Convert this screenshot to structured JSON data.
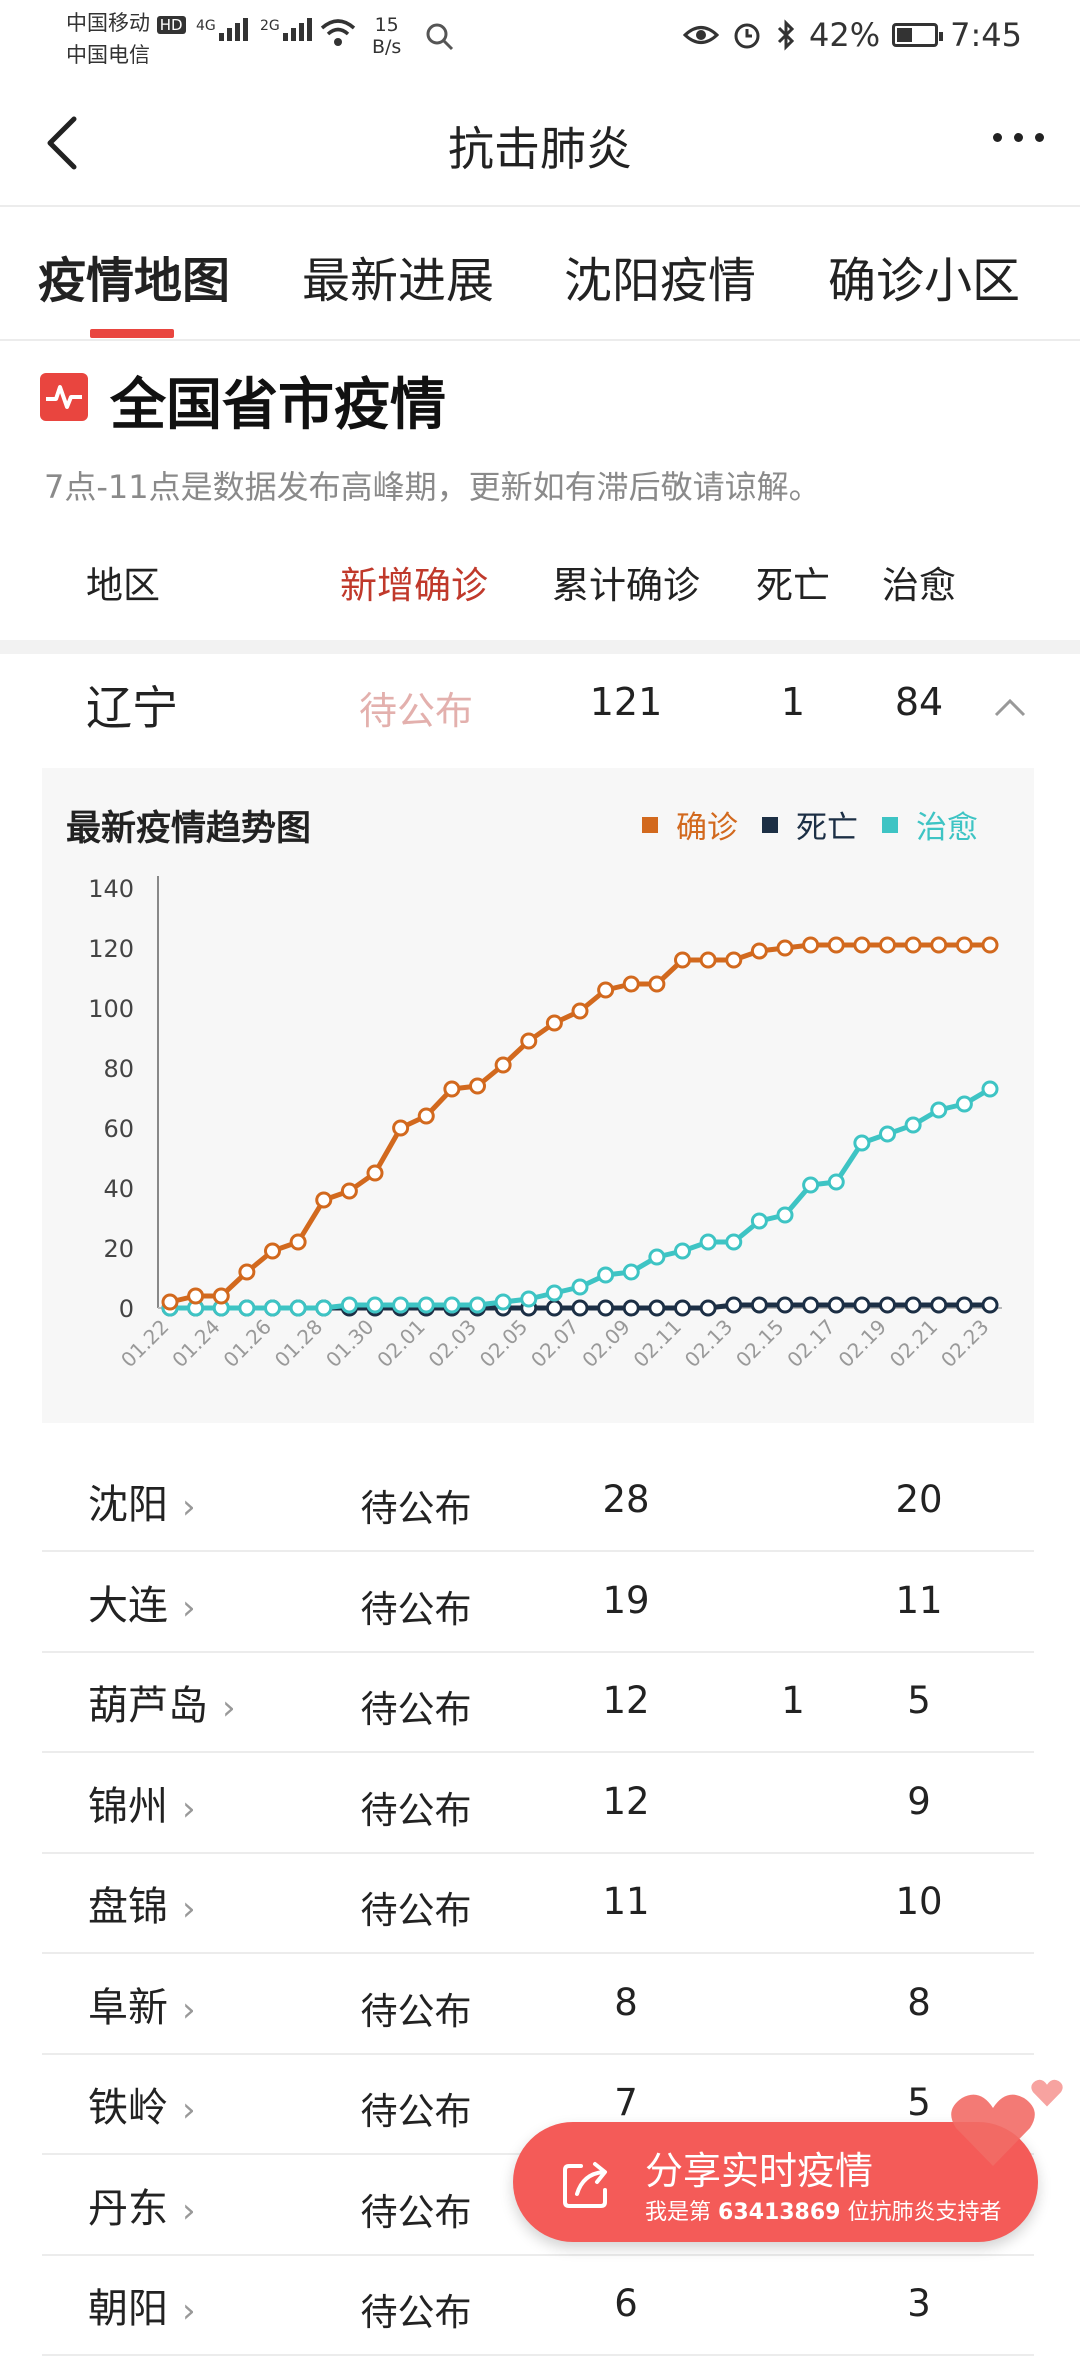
{
  "status_bar": {
    "carrier1": "中国移动",
    "carrier1_badge": "HD",
    "carrier2": "中国电信",
    "net1": "4G",
    "net2": "2G",
    "speed_value": "15",
    "speed_unit": "B/s",
    "battery_text": "42%",
    "battery_level": 0.42,
    "time": "7:45"
  },
  "nav": {
    "title": "抗击肺炎"
  },
  "tabs": [
    {
      "label": "疫情地图"
    },
    {
      "label": "最新进展"
    },
    {
      "label": "沈阳疫情"
    },
    {
      "label": "确诊小区"
    }
  ],
  "section": {
    "title": "全国省市疫情",
    "note": "7点-11点是数据发布高峰期，更新如有滞后敬请谅解。"
  },
  "columns": {
    "region": "地区",
    "new": "新增确诊",
    "total": "累计确诊",
    "death": "死亡",
    "cured": "治愈"
  },
  "province": {
    "name": "辽宁",
    "new": "待公布",
    "total": "121",
    "death": "1",
    "cured": "84"
  },
  "colors": {
    "confirmed": "#d2691e",
    "death": "#1c2f45",
    "cured": "#3ec4c4",
    "accent": "#e9453f"
  },
  "chart_data": {
    "type": "line",
    "title": "最新疫情趋势图",
    "x": [
      "01.22",
      "01.23",
      "01.24",
      "01.25",
      "01.26",
      "01.27",
      "01.28",
      "01.29",
      "01.30",
      "01.31",
      "02.01",
      "02.02",
      "02.03",
      "02.04",
      "02.05",
      "02.06",
      "02.07",
      "02.08",
      "02.09",
      "02.10",
      "02.11",
      "02.12",
      "02.13",
      "02.14",
      "02.15",
      "02.16",
      "02.17",
      "02.18",
      "02.19",
      "02.20",
      "02.21",
      "02.22",
      "02.23"
    ],
    "x_tick_labels": [
      "01.22",
      "01.24",
      "01.26",
      "01.28",
      "01.30",
      "02.01",
      "02.03",
      "02.05",
      "02.07",
      "02.09",
      "02.11",
      "02.13",
      "02.15",
      "02.17",
      "02.19",
      "02.21",
      "02.23"
    ],
    "ylim": [
      0,
      140
    ],
    "y_ticks": [
      0,
      20,
      40,
      60,
      80,
      100,
      120,
      140
    ],
    "legend_position": "top-right",
    "series": [
      {
        "name": "确诊",
        "color": "#d2691e",
        "values": [
          2,
          4,
          4,
          12,
          19,
          22,
          36,
          39,
          45,
          60,
          64,
          73,
          74,
          81,
          89,
          95,
          99,
          106,
          108,
          108,
          116,
          116,
          116,
          119,
          120,
          121,
          121,
          121,
          121,
          121,
          121,
          121,
          121
        ]
      },
      {
        "name": "死亡",
        "color": "#1c2f45",
        "values": [
          0,
          0,
          0,
          0,
          0,
          0,
          0,
          0,
          0,
          0,
          0,
          0,
          0,
          0,
          0,
          0,
          0,
          0,
          0,
          0,
          0,
          0,
          1,
          1,
          1,
          1,
          1,
          1,
          1,
          1,
          1,
          1,
          1
        ]
      },
      {
        "name": "治愈",
        "color": "#3ec4c4",
        "values": [
          0,
          0,
          0,
          0,
          0,
          0,
          0,
          1,
          1,
          1,
          1,
          1,
          1,
          2,
          3,
          5,
          7,
          11,
          12,
          17,
          19,
          22,
          22,
          29,
          31,
          41,
          42,
          55,
          58,
          61,
          66,
          68,
          73
        ]
      }
    ]
  },
  "cities": [
    {
      "name": "沈阳",
      "new": "待公布",
      "total": "28",
      "death": "",
      "cured": "20"
    },
    {
      "name": "大连",
      "new": "待公布",
      "total": "19",
      "death": "",
      "cured": "11"
    },
    {
      "name": "葫芦岛",
      "new": "待公布",
      "total": "12",
      "death": "1",
      "cured": "5"
    },
    {
      "name": "锦州",
      "new": "待公布",
      "total": "12",
      "death": "",
      "cured": "9"
    },
    {
      "name": "盘锦",
      "new": "待公布",
      "total": "11",
      "death": "",
      "cured": "10"
    },
    {
      "name": "阜新",
      "new": "待公布",
      "total": "8",
      "death": "",
      "cured": "8"
    },
    {
      "name": "铁岭",
      "new": "待公布",
      "total": "7",
      "death": "",
      "cured": "5"
    },
    {
      "name": "丹东",
      "new": "待公布",
      "total": "",
      "death": "",
      "cured": ""
    },
    {
      "name": "朝阳",
      "new": "待公布",
      "total": "6",
      "death": "",
      "cured": "3"
    }
  ],
  "share": {
    "title": "分享实时疫情",
    "sub_prefix": "我是第",
    "sub_number": "63413869",
    "sub_suffix": "位抗肺炎支持者"
  }
}
